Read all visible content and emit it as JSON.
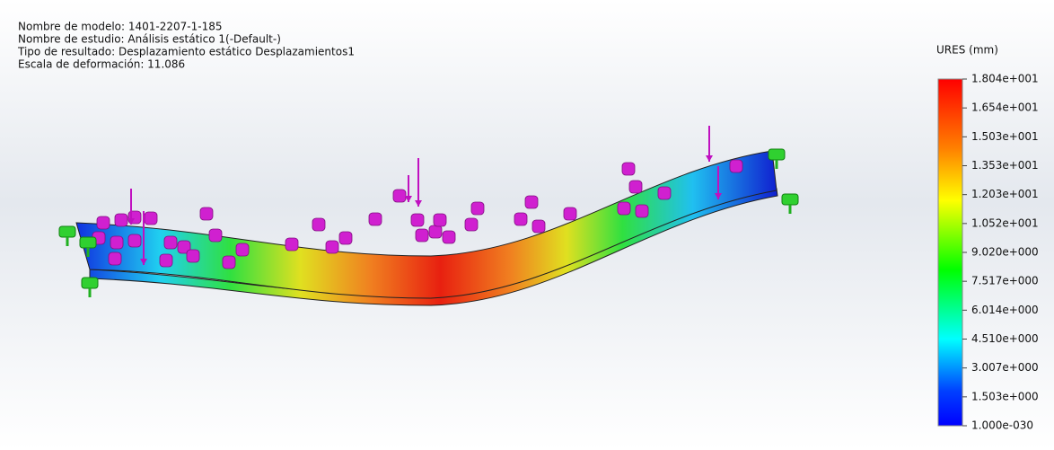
{
  "header": {
    "lines": [
      "Nombre de modelo: 1401-2207-1-185",
      "Nombre de estudio: Análisis estático 1(-Default-)",
      "Tipo de resultado: Desplazamiento estático Desplazamientos1",
      "Escala de deformación: 11.086"
    ]
  },
  "legend": {
    "title": "URES (mm)",
    "labels": [
      "1.804e+001",
      "1.654e+001",
      "1.503e+001",
      "1.353e+001",
      "1.203e+001",
      "1.052e+001",
      "9.020e+000",
      "7.517e+000",
      "6.014e+000",
      "4.510e+000",
      "3.007e+000",
      "1.503e+000",
      "1.000e-030"
    ]
  }
}
